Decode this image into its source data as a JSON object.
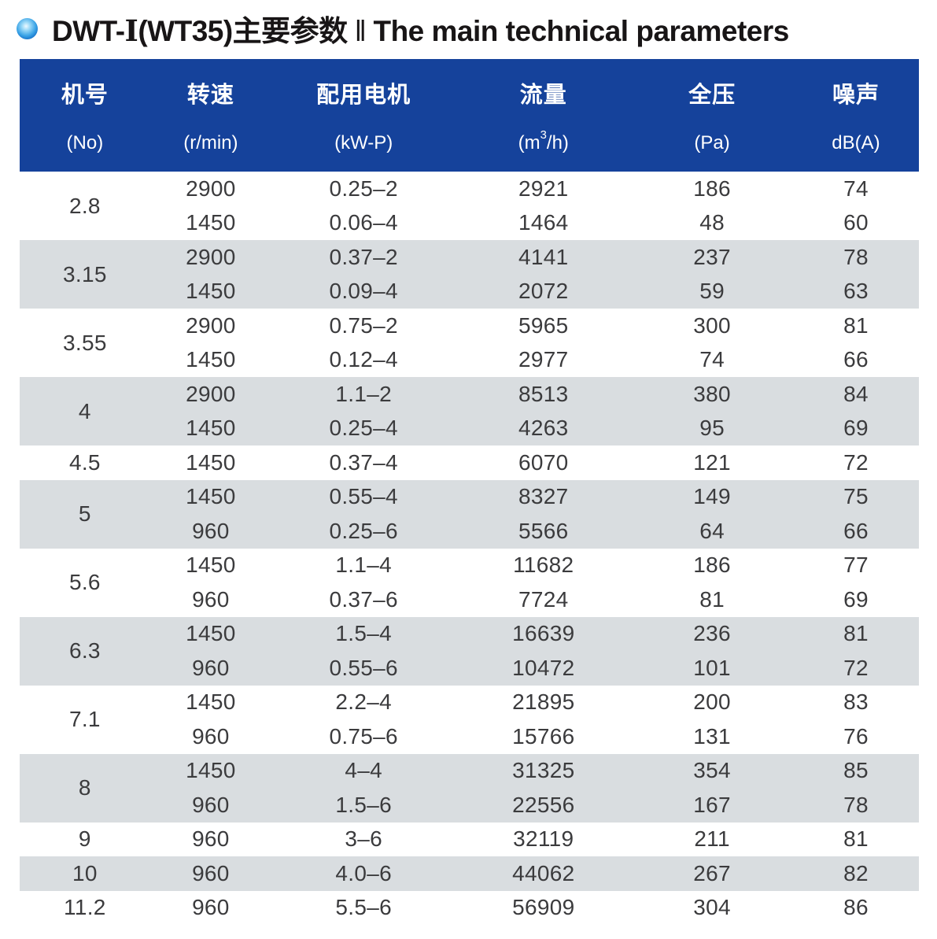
{
  "title": {
    "prefix": "DWT-",
    "roman": "Ⅰ",
    "suffix": "(WT35)主要参数",
    "separator": "‖",
    "english": "The main technical parameters"
  },
  "colors": {
    "header_bg": "#15429b",
    "header_text": "#ffffff",
    "row_stripe": "#d9dde0",
    "body_text": "#3b3b3d",
    "bullet_blue": "#0b62c0"
  },
  "table": {
    "columns": [
      {
        "zh": "机号",
        "unit": "(No)"
      },
      {
        "zh": "转速",
        "unit": "(r/min)"
      },
      {
        "zh": "配用电机",
        "unit": "(kW-P)"
      },
      {
        "zh": "流量",
        "unit_pre": "(m",
        "unit_sup": "3",
        "unit_post": "/h)"
      },
      {
        "zh": "全压",
        "unit": "(Pa)"
      },
      {
        "zh": "噪声",
        "unit": "dB(A)"
      }
    ],
    "groups": [
      {
        "no": "2.8",
        "shaded": false,
        "rows": [
          [
            "2900",
            "0.25–2",
            "2921",
            "186",
            "74"
          ],
          [
            "1450",
            "0.06–4",
            "1464",
            "48",
            "60"
          ]
        ]
      },
      {
        "no": "3.15",
        "shaded": true,
        "rows": [
          [
            "2900",
            "0.37–2",
            "4141",
            "237",
            "78"
          ],
          [
            "1450",
            "0.09–4",
            "2072",
            "59",
            "63"
          ]
        ]
      },
      {
        "no": "3.55",
        "shaded": false,
        "rows": [
          [
            "2900",
            "0.75–2",
            "5965",
            "300",
            "81"
          ],
          [
            "1450",
            "0.12–4",
            "2977",
            "74",
            "66"
          ]
        ]
      },
      {
        "no": "4",
        "shaded": true,
        "rows": [
          [
            "2900",
            "1.1–2",
            "8513",
            "380",
            "84"
          ],
          [
            "1450",
            "0.25–4",
            "4263",
            "95",
            "69"
          ]
        ]
      },
      {
        "no": "4.5",
        "shaded": false,
        "rows": [
          [
            "1450",
            "0.37–4",
            "6070",
            "121",
            "72"
          ]
        ]
      },
      {
        "no": "5",
        "shaded": true,
        "rows": [
          [
            "1450",
            "0.55–4",
            "8327",
            "149",
            "75"
          ],
          [
            "960",
            "0.25–6",
            "5566",
            "64",
            "66"
          ]
        ]
      },
      {
        "no": "5.6",
        "shaded": false,
        "rows": [
          [
            "1450",
            "1.1–4",
            "11682",
            "186",
            "77"
          ],
          [
            "960",
            "0.37–6",
            "7724",
            "81",
            "69"
          ]
        ]
      },
      {
        "no": "6.3",
        "shaded": true,
        "rows": [
          [
            "1450",
            "1.5–4",
            "16639",
            "236",
            "81"
          ],
          [
            "960",
            "0.55–6",
            "10472",
            "101",
            "72"
          ]
        ]
      },
      {
        "no": "7.1",
        "shaded": false,
        "rows": [
          [
            "1450",
            "2.2–4",
            "21895",
            "200",
            "83"
          ],
          [
            "960",
            "0.75–6",
            "15766",
            "131",
            "76"
          ]
        ]
      },
      {
        "no": "8",
        "shaded": true,
        "rows": [
          [
            "1450",
            "4–4",
            "31325",
            "354",
            "85"
          ],
          [
            "960",
            "1.5–6",
            "22556",
            "167",
            "78"
          ]
        ]
      },
      {
        "no": "9",
        "shaded": false,
        "rows": [
          [
            "960",
            "3–6",
            "32119",
            "211",
            "81"
          ]
        ]
      },
      {
        "no": "10",
        "shaded": true,
        "rows": [
          [
            "960",
            "4.0–6",
            "44062",
            "267",
            "82"
          ]
        ]
      },
      {
        "no": "11.2",
        "shaded": false,
        "rows": [
          [
            "960",
            "5.5–6",
            "56909",
            "304",
            "86"
          ]
        ]
      }
    ]
  }
}
